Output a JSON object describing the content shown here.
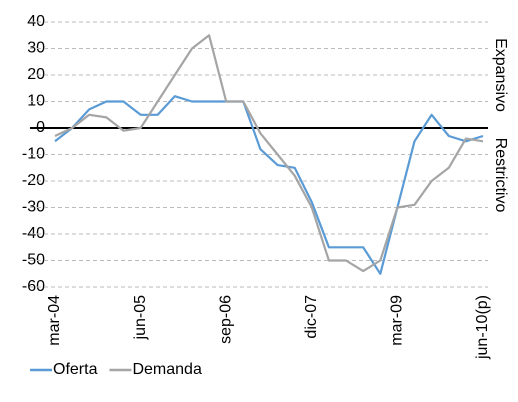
{
  "chart_data": {
    "type": "line",
    "categories": [
      "mar-04",
      null,
      null,
      null,
      null,
      "jun-05",
      null,
      null,
      null,
      null,
      "sep-06",
      null,
      null,
      null,
      null,
      "dic-07",
      null,
      null,
      null,
      null,
      "mar-09",
      null,
      null,
      null,
      null,
      "jun-10(p)"
    ],
    "series": [
      {
        "name": "Oferta",
        "color": "#5b9bd5",
        "values": [
          -5,
          0,
          7,
          10,
          10,
          5,
          5,
          12,
          10,
          10,
          10,
          10,
          -8,
          -14,
          -15,
          -28,
          -45,
          -45,
          -45,
          -55,
          -30,
          -5,
          5,
          -3,
          -5,
          -3
        ]
      },
      {
        "name": "Demanda",
        "color": "#a5a5a5",
        "values": [
          -3,
          0,
          5,
          4,
          -1,
          0,
          10,
          20,
          30,
          35,
          10,
          10,
          -2,
          -10,
          -18,
          -30,
          -50,
          -50,
          -54,
          -50,
          -30,
          -29,
          -20,
          -15,
          -4,
          -5
        ]
      }
    ],
    "ylim": [
      -60,
      40
    ],
    "yticks": [
      -60,
      -50,
      -40,
      -30,
      -20,
      -10,
      0,
      10,
      20,
      30,
      40
    ],
    "grid": true,
    "legend": "bottom",
    "annotations": [
      "Expansivo",
      "Restrictivo"
    ]
  }
}
